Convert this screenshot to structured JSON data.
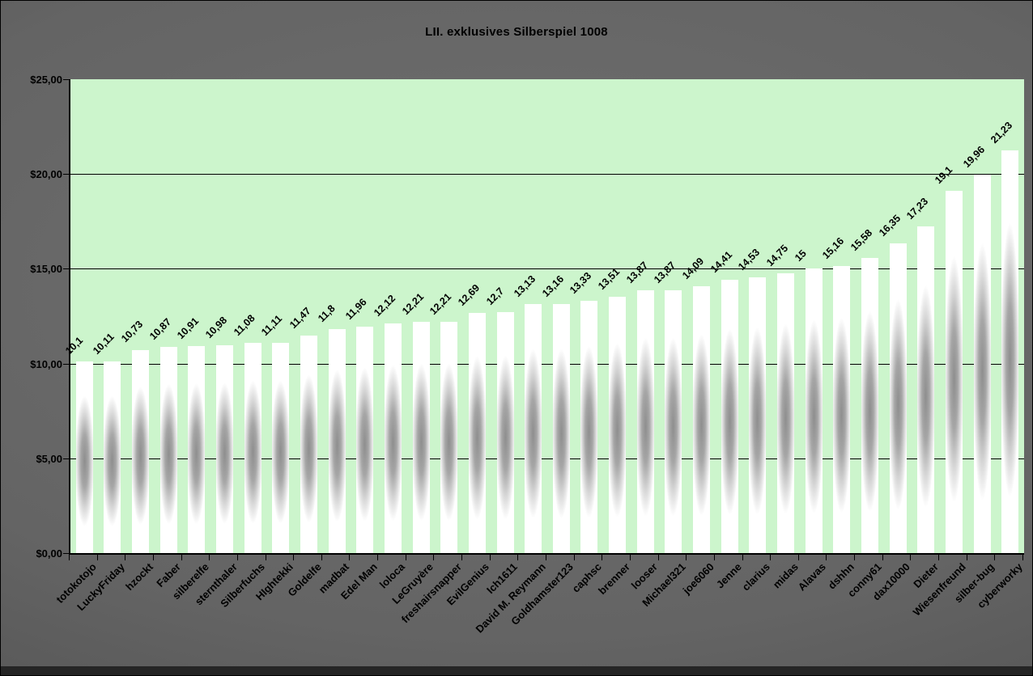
{
  "window": {
    "bottom_band_color": "#252525",
    "background_color": "#646464"
  },
  "chart_data": {
    "type": "bar",
    "title": "LII. exklusives Silberspiel 1008",
    "xlabel": "",
    "ylabel": "",
    "ylim": [
      0,
      25
    ],
    "grid": "horizontal",
    "legend": "none",
    "currency_format": "$#,##0.00 (German comma decimals)",
    "plot_bg_color": "#ccf5cc",
    "bar_style": "silver gradient (gray core fading to white edges)",
    "y_ticks": [
      {
        "value": 25,
        "label": "$25,00"
      },
      {
        "value": 20,
        "label": "$20,00"
      },
      {
        "value": 15,
        "label": "$15,00"
      },
      {
        "value": 10,
        "label": "$10,00"
      },
      {
        "value": 5,
        "label": "$5,00"
      },
      {
        "value": 0,
        "label": "$0,00"
      }
    ],
    "categories": [
      "totokotojo",
      "LuckyFriday",
      "hzockt",
      "Faber",
      "silberelfe",
      "sternthaler",
      "Silberfuchs",
      "HIghtekki",
      "Goldelfe",
      "madbat",
      "Edel Man",
      "loloca",
      "LeGruyère",
      "freshairsnapper",
      "EvilGenius",
      "Ich1611",
      "David M. Reymann",
      "Goldhamster123",
      "caphsc",
      "brenner",
      "looser",
      "Michael321",
      "joe6060",
      "Jenne",
      "clarius",
      "midas",
      "Alavas",
      "dshhn",
      "conny61",
      "dax10000",
      "Dieter",
      "Wiesenfreund",
      "silber-bug",
      "cyberworky"
    ],
    "values": [
      10.1,
      10.11,
      10.73,
      10.87,
      10.91,
      10.98,
      11.08,
      11.11,
      11.47,
      11.8,
      11.96,
      12.12,
      12.21,
      12.21,
      12.69,
      12.7,
      13.13,
      13.16,
      13.33,
      13.51,
      13.87,
      13.87,
      14.09,
      14.41,
      14.53,
      14.75,
      15,
      15.16,
      15.58,
      16.35,
      17.23,
      19.1,
      19.96,
      21.23
    ],
    "value_labels": [
      "10,1",
      "10,11",
      "10,73",
      "10,87",
      "10,91",
      "10,98",
      "11,08",
      "11,11",
      "11,47",
      "11,8",
      "11,96",
      "12,12",
      "12,21",
      "12,21",
      "12,69",
      "12,7",
      "13,13",
      "13,16",
      "13,33",
      "13,51",
      "13,87",
      "13,87",
      "14,09",
      "14,41",
      "14,53",
      "14,75",
      "15",
      "15,16",
      "15,58",
      "16,35",
      "17,23",
      "19,1",
      "19,96",
      "21,23"
    ]
  }
}
